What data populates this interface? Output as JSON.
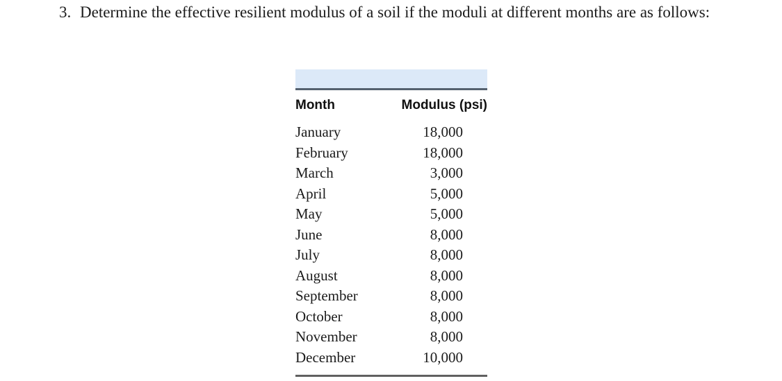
{
  "question": {
    "number": "3.",
    "text": "Determine the effective resilient modulus of a soil if the moduli at different months are as follows:"
  },
  "table": {
    "headers": {
      "month": "Month",
      "modulus": "Modulus (psi)"
    },
    "rows": [
      {
        "month": "January",
        "value": "18,000"
      },
      {
        "month": "February",
        "value": "18,000"
      },
      {
        "month": "March",
        "value": "3,000"
      },
      {
        "month": "April",
        "value": "5,000"
      },
      {
        "month": "May",
        "value": "5,000"
      },
      {
        "month": "June",
        "value": "8,000"
      },
      {
        "month": "July",
        "value": "8,000"
      },
      {
        "month": "August",
        "value": "8,000"
      },
      {
        "month": "September",
        "value": "8,000"
      },
      {
        "month": "October",
        "value": "8,000"
      },
      {
        "month": "November",
        "value": "8,000"
      },
      {
        "month": "December",
        "value": "10,000"
      }
    ]
  },
  "colors": {
    "band_fill": "#dce9f8",
    "band_rule": "#55616f",
    "bottom_rule": "#606060",
    "text": "#1b1b1b"
  }
}
